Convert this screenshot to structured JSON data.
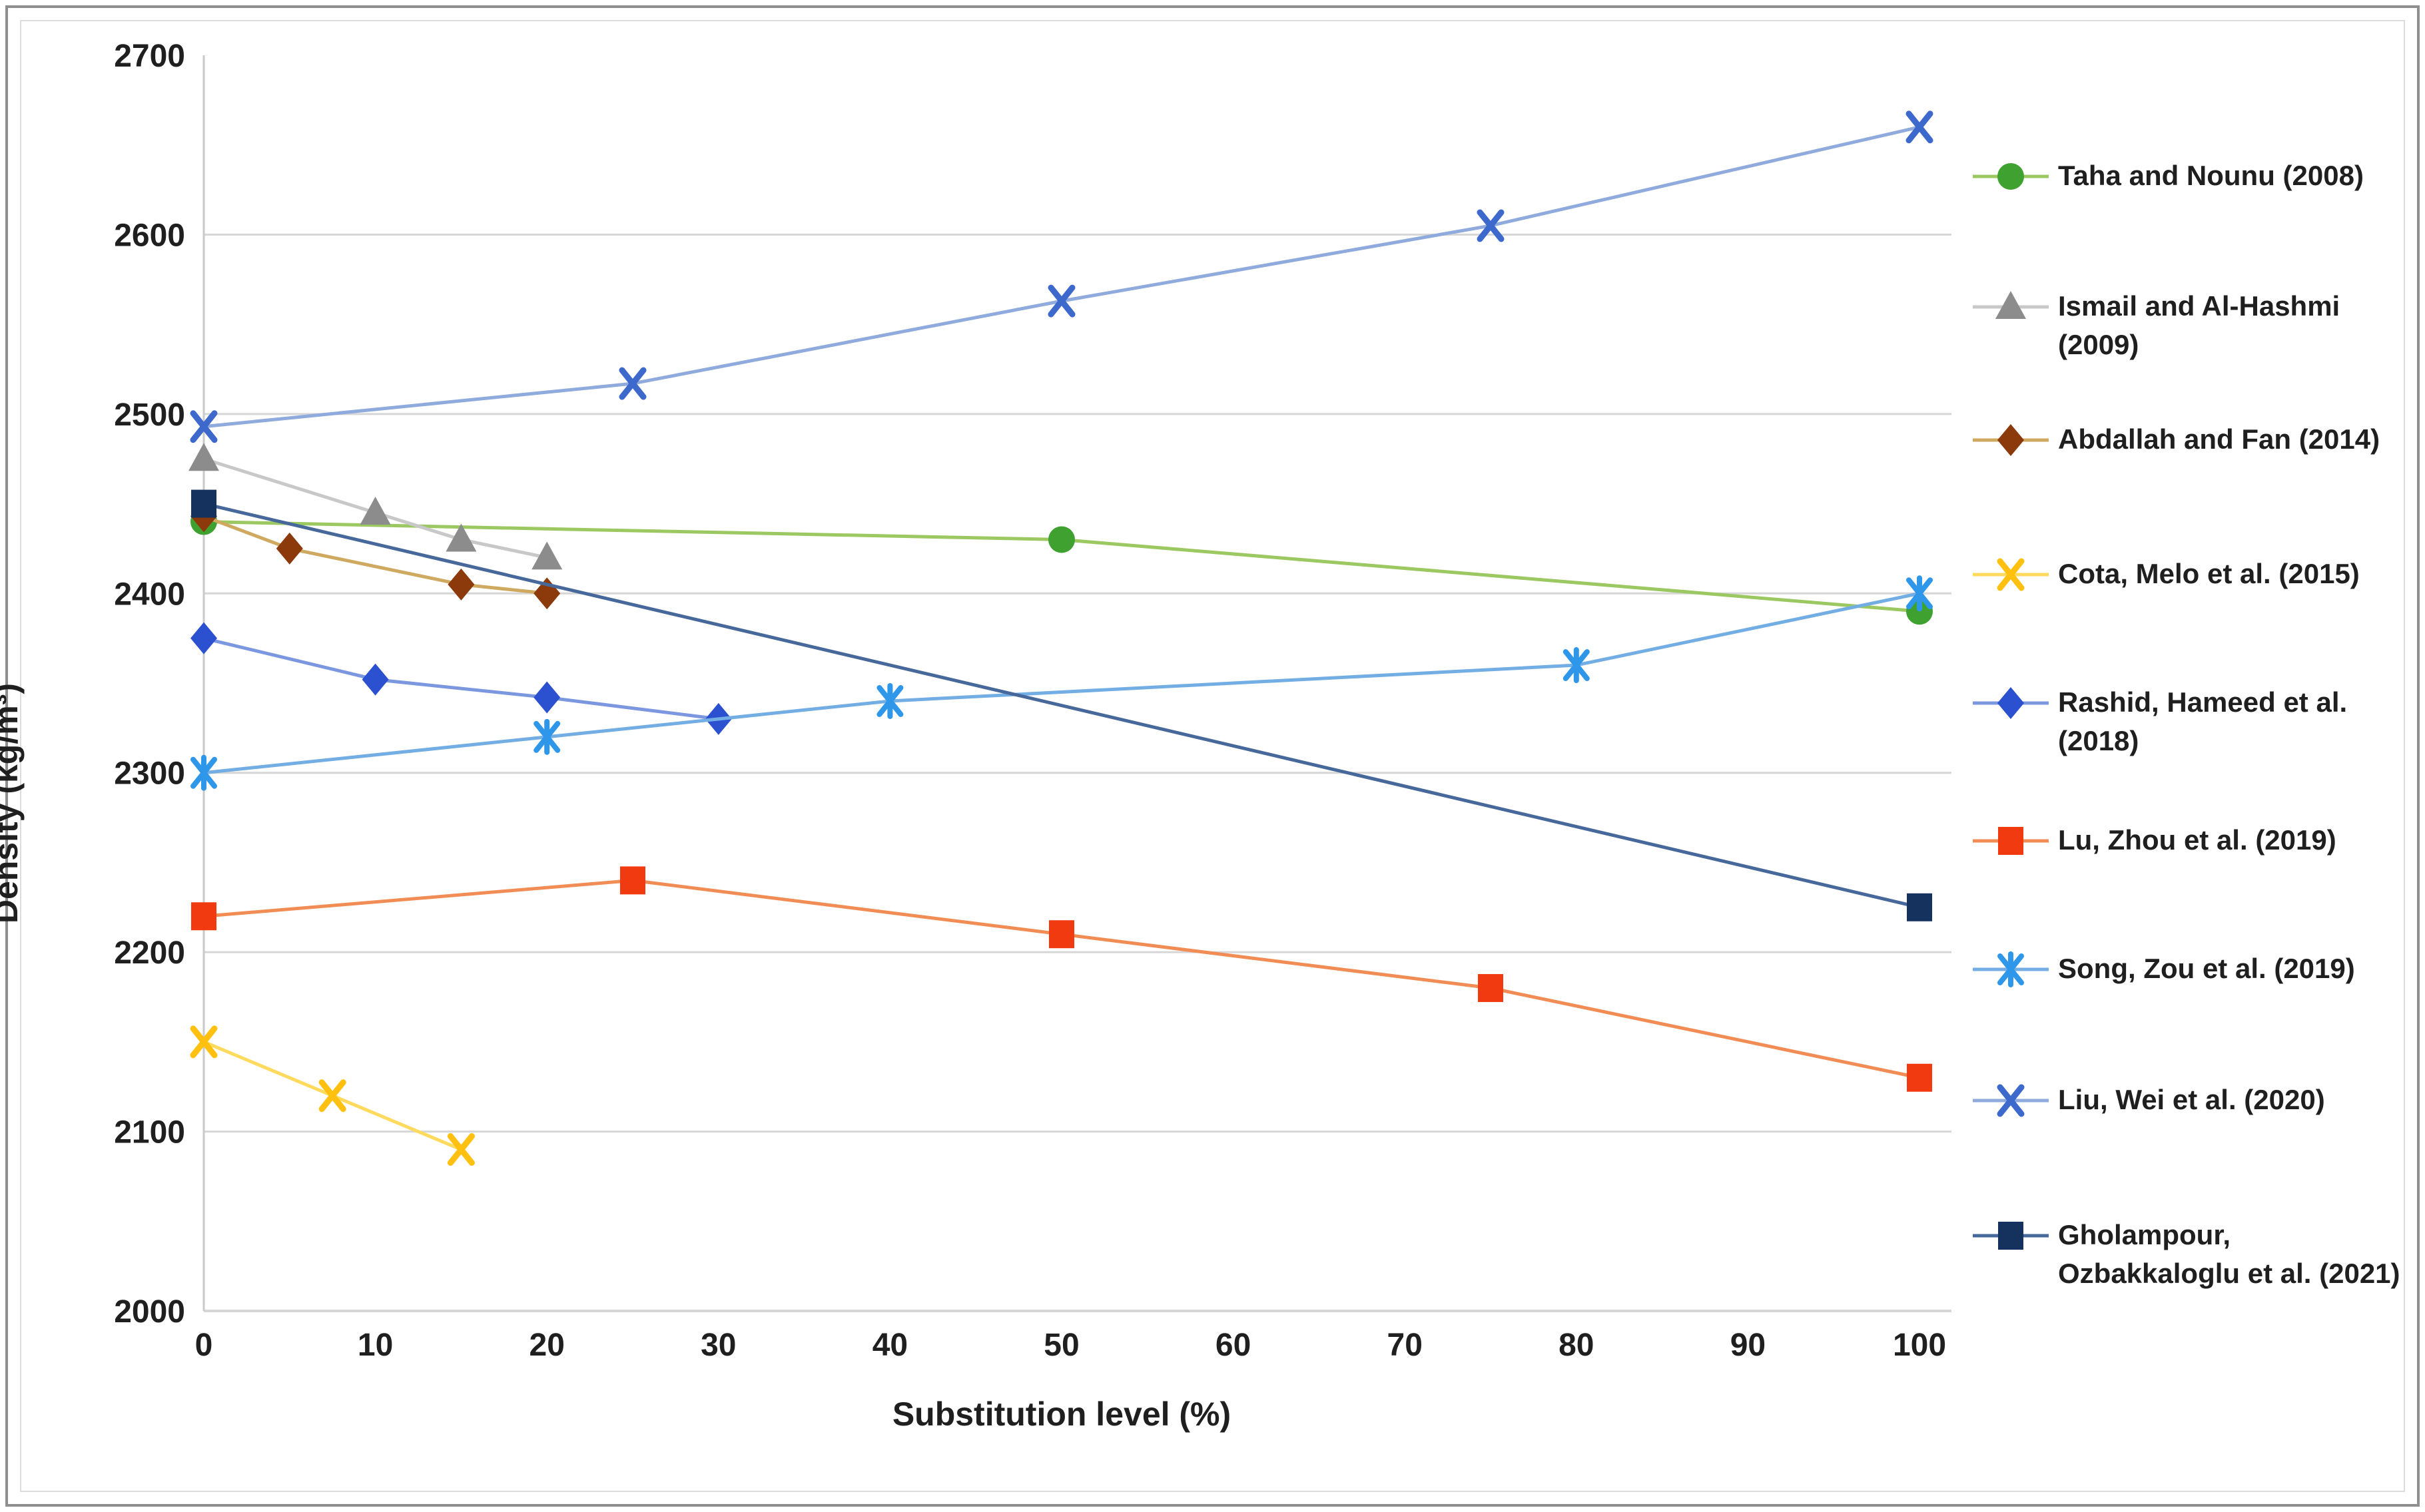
{
  "figure": {
    "background": "#ffffff",
    "outer_border_color": "#8f8f8f",
    "chart_border_color": "#dcdcdc",
    "grid_color": "#d6d6d6",
    "axis_line_color": "#c9c9c9",
    "text_color": "#1f1f1f"
  },
  "chart_data": {
    "type": "line",
    "title": "",
    "xlabel": "Substitution level (%)",
    "ylabel": "Density (kg/m³)",
    "xlim": [
      0,
      100
    ],
    "xstep": 10,
    "ylim": [
      2000,
      2700
    ],
    "ystep": 100,
    "grid": "horizontal",
    "legend_position": "right",
    "x_tick_labels": [
      "0",
      "10",
      "20",
      "30",
      "40",
      "50",
      "60",
      "70",
      "80",
      "90",
      "100"
    ],
    "y_tick_labels": [
      "2000",
      "2100",
      "2200",
      "2300",
      "2400",
      "2500",
      "2600",
      "2700"
    ],
    "series": [
      {
        "name": "Taha and Nounu (2008)",
        "legend_lines": [
          "Taha and Nounu (2008)"
        ],
        "marker": "circle",
        "marker_color": "#3fa130",
        "line_color": "#9cc861",
        "x": [
          0,
          50,
          100
        ],
        "values": [
          2440,
          2430,
          2390
        ]
      },
      {
        "name": "Ismail and Al-Hashmi (2009)",
        "legend_lines": [
          "Ismail and Al-Hashmi",
          "(2009)"
        ],
        "marker": "triangle",
        "marker_color": "#8c8c8c",
        "line_color": "#c8c8c8",
        "x": [
          0,
          10,
          15,
          20
        ],
        "values": [
          2475,
          2445,
          2430,
          2420
        ]
      },
      {
        "name": "Abdallah and Fan (2014)",
        "legend_lines": [
          "Abdallah and Fan (2014)"
        ],
        "marker": "diamond",
        "marker_color": "#8c3a0c",
        "line_color": "#cfa95f",
        "x": [
          0,
          5,
          15,
          20
        ],
        "values": [
          2443,
          2425,
          2405,
          2400
        ]
      },
      {
        "name": "Cota, Melo et al. (2015)",
        "legend_lines": [
          "Cota, Melo et al. (2015)"
        ],
        "marker": "x",
        "marker_color": "#ffc010",
        "line_color": "#ffda5c",
        "x": [
          0,
          7.5,
          15
        ],
        "values": [
          2150,
          2120,
          2090
        ]
      },
      {
        "name": "Rashid, Hameed et al. (2018)",
        "legend_lines": [
          "Rashid, Hameed et al.",
          "(2018)"
        ],
        "marker": "diamond",
        "marker_color": "#2b50d0",
        "line_color": "#7b97e0",
        "x": [
          0,
          10,
          20,
          30
        ],
        "values": [
          2375,
          2352,
          2342,
          2330
        ]
      },
      {
        "name": "Lu, Zhou et al. (2019)",
        "legend_lines": [
          "Lu, Zhou et al. (2019)"
        ],
        "marker": "square",
        "marker_color": "#f23a10",
        "line_color": "#f28c55",
        "x": [
          0,
          25,
          50,
          75,
          100
        ],
        "values": [
          2220,
          2240,
          2210,
          2180,
          2130
        ]
      },
      {
        "name": "Song, Zou et al. (2019)",
        "legend_lines": [
          "Song, Zou et al. (2019)"
        ],
        "marker": "asterisk",
        "marker_color": "#2f97ea",
        "line_color": "#72ade4",
        "x": [
          0,
          20,
          40,
          80,
          100
        ],
        "values": [
          2300,
          2320,
          2340,
          2360,
          2400
        ]
      },
      {
        "name": "Liu, Wei et al. (2020)",
        "legend_lines": [
          "Liu, Wei et al. (2020)"
        ],
        "marker": "x",
        "marker_color": "#3d68cc",
        "line_color": "#8faadc",
        "x": [
          0,
          25,
          50,
          75,
          100
        ],
        "values": [
          2493,
          2517,
          2563,
          2605,
          2660
        ]
      },
      {
        "name": "Gholampour, Ozbakkaloglu et al. (2021)",
        "legend_lines": [
          "Gholampour,",
          "Ozbakkaloglu et al. (2021)"
        ],
        "marker": "square",
        "marker_color": "#15325f",
        "line_color": "#46689b",
        "x": [
          0,
          100
        ],
        "values": [
          2450,
          2225
        ]
      }
    ]
  }
}
